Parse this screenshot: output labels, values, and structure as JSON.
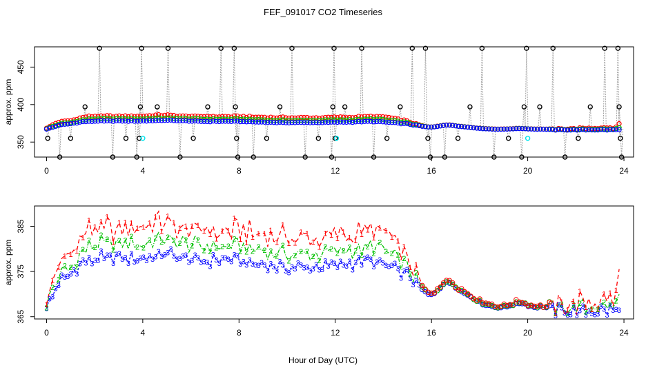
{
  "title": "FEF_091017  CO2 Timeseries",
  "colors": {
    "s1": "#ff0000",
    "s2": "#00c000",
    "s3": "#0000ff",
    "raw": "#000000",
    "flag": "#00e5ee",
    "line": "#a0a0a0"
  },
  "chart_data": [
    {
      "type": "scatter",
      "title": "FEF_091017  CO2 Timeseries",
      "xlabel": "",
      "ylabel": "approx. ppm",
      "xlim": [
        -0.5,
        24.4
      ],
      "ylim": [
        330,
        477
      ],
      "xticks": [
        0,
        4,
        8,
        12,
        16,
        20,
        24
      ],
      "yticks": [
        350,
        400,
        450
      ],
      "raw_spikes": [
        {
          "x": 0.05,
          "y": 355
        },
        {
          "x": 0.55,
          "y": 330
        },
        {
          "x": 1.0,
          "y": 355
        },
        {
          "x": 1.6,
          "y": 397
        },
        {
          "x": 2.2,
          "y": 475
        },
        {
          "x": 2.75,
          "y": 330
        },
        {
          "x": 3.3,
          "y": 355
        },
        {
          "x": 3.75,
          "y": 330
        },
        {
          "x": 3.85,
          "y": 355
        },
        {
          "x": 3.9,
          "y": 397
        },
        {
          "x": 3.95,
          "y": 475
        },
        {
          "x": 4.6,
          "y": 397
        },
        {
          "x": 5.05,
          "y": 475
        },
        {
          "x": 5.55,
          "y": 330
        },
        {
          "x": 6.1,
          "y": 355
        },
        {
          "x": 6.7,
          "y": 397
        },
        {
          "x": 7.25,
          "y": 475
        },
        {
          "x": 7.8,
          "y": 475
        },
        {
          "x": 7.85,
          "y": 397
        },
        {
          "x": 7.9,
          "y": 355
        },
        {
          "x": 7.95,
          "y": 330
        },
        {
          "x": 8.6,
          "y": 330
        },
        {
          "x": 9.15,
          "y": 355
        },
        {
          "x": 9.7,
          "y": 397
        },
        {
          "x": 10.2,
          "y": 475
        },
        {
          "x": 10.75,
          "y": 330
        },
        {
          "x": 11.3,
          "y": 355
        },
        {
          "x": 11.85,
          "y": 330
        },
        {
          "x": 11.9,
          "y": 397
        },
        {
          "x": 11.95,
          "y": 475
        },
        {
          "x": 12.0,
          "y": 355
        },
        {
          "x": 12.4,
          "y": 397
        },
        {
          "x": 13.1,
          "y": 475
        },
        {
          "x": 13.6,
          "y": 330
        },
        {
          "x": 14.15,
          "y": 355
        },
        {
          "x": 14.7,
          "y": 397
        },
        {
          "x": 15.2,
          "y": 475
        },
        {
          "x": 15.75,
          "y": 475
        },
        {
          "x": 15.85,
          "y": 355
        },
        {
          "x": 15.95,
          "y": 330
        },
        {
          "x": 16.55,
          "y": 330
        },
        {
          "x": 17.1,
          "y": 355
        },
        {
          "x": 17.6,
          "y": 397
        },
        {
          "x": 18.1,
          "y": 475
        },
        {
          "x": 18.6,
          "y": 330
        },
        {
          "x": 19.2,
          "y": 355
        },
        {
          "x": 19.75,
          "y": 330
        },
        {
          "x": 19.85,
          "y": 397
        },
        {
          "x": 19.95,
          "y": 475
        },
        {
          "x": 20.5,
          "y": 397
        },
        {
          "x": 21.05,
          "y": 475
        },
        {
          "x": 21.55,
          "y": 330
        },
        {
          "x": 22.1,
          "y": 355
        },
        {
          "x": 22.6,
          "y": 397
        },
        {
          "x": 23.2,
          "y": 475
        },
        {
          "x": 23.75,
          "y": 475
        },
        {
          "x": 23.8,
          "y": 397
        },
        {
          "x": 23.85,
          "y": 355
        },
        {
          "x": 23.9,
          "y": 330
        }
      ],
      "flagged_points": [
        {
          "x": 4.0,
          "y": 355
        },
        {
          "x": 12.05,
          "y": 355
        },
        {
          "x": 20.0,
          "y": 355
        }
      ]
    },
    {
      "type": "line",
      "title": "",
      "xlabel": "Hour of Day (UTC)",
      "ylabel": "approx. ppm",
      "xlim": [
        -0.5,
        24.4
      ],
      "ylim": [
        364.5,
        389.5
      ],
      "xticks": [
        0,
        4,
        8,
        12,
        16,
        20,
        24
      ],
      "yticks": [
        365,
        375,
        385
      ],
      "series_labels": [
        "1",
        "2",
        "3"
      ],
      "anchors_hour": [
        0.0,
        0.15,
        0.3,
        0.45,
        0.55,
        0.7,
        0.85,
        1.0,
        1.2,
        1.5,
        1.8,
        2.1,
        2.5,
        3.0,
        3.5,
        4.0,
        4.5,
        5.0,
        5.5,
        6.0,
        6.5,
        7.0,
        7.5,
        8.0,
        8.5,
        9.0,
        9.5,
        10.0,
        10.5,
        11.0,
        11.5,
        12.0,
        12.5,
        13.0,
        13.5,
        14.0,
        14.5,
        15.0,
        15.3,
        15.6,
        15.9,
        16.1,
        16.3,
        16.5,
        16.7,
        16.9,
        17.1,
        17.4,
        17.7,
        18.0,
        18.3,
        18.6,
        19.0,
        19.4,
        19.7,
        19.95,
        20.3,
        20.7,
        21.0,
        21.5,
        22.0,
        22.5,
        23.0,
        23.3,
        23.5,
        23.65,
        23.8
      ],
      "series": [
        {
          "name": "1",
          "values": [
            369.0,
            371.0,
            374.0,
            376.0,
            377.0,
            378.0,
            378.0,
            378.5,
            380.0,
            383.0,
            384.0,
            384.5,
            384.5,
            384.5,
            384.5,
            384.5,
            385.5,
            386.0,
            385.0,
            384.5,
            384.0,
            384.0,
            384.0,
            384.0,
            383.5,
            383.0,
            382.5,
            382.5,
            382.5,
            382.5,
            382.5,
            383.0,
            383.0,
            383.5,
            384.0,
            383.5,
            381.0,
            378.0,
            374.0,
            372.0,
            370.0,
            370.5,
            371.5,
            372.5,
            373.0,
            372.5,
            371.5,
            370.5,
            369.5,
            368.5,
            368.0,
            367.5,
            367.5,
            368.0,
            368.5,
            368.0,
            367.5,
            367.5,
            367.0,
            367.5,
            368.0,
            368.5,
            368.5,
            369.0,
            368.0,
            369.0,
            374.0
          ]
        },
        {
          "name": "2",
          "values": [
            368.0,
            369.5,
            371.5,
            373.0,
            374.0,
            375.0,
            375.5,
            376.0,
            377.5,
            379.5,
            380.5,
            381.0,
            381.0,
            381.0,
            381.0,
            381.0,
            381.5,
            382.0,
            381.5,
            381.0,
            380.5,
            380.5,
            380.5,
            380.5,
            380.0,
            379.5,
            379.0,
            379.0,
            379.0,
            379.0,
            379.0,
            379.5,
            379.5,
            380.0,
            380.5,
            380.0,
            378.0,
            376.0,
            373.0,
            371.5,
            370.0,
            370.3,
            371.3,
            372.3,
            372.8,
            372.3,
            371.3,
            370.3,
            369.3,
            368.3,
            367.8,
            367.3,
            367.3,
            367.8,
            368.3,
            367.8,
            367.3,
            367.3,
            366.6,
            366.8,
            367.0,
            367.0,
            367.2,
            367.4,
            367.2,
            367.5,
            369.0
          ]
        },
        {
          "name": "3",
          "values": [
            367.5,
            368.5,
            370.0,
            371.5,
            372.5,
            373.5,
            374.0,
            374.5,
            375.5,
            377.0,
            377.5,
            378.0,
            378.0,
            378.0,
            378.0,
            378.0,
            378.5,
            379.0,
            378.5,
            378.0,
            377.5,
            377.5,
            377.5,
            377.5,
            377.0,
            376.5,
            376.0,
            376.0,
            376.0,
            376.0,
            376.0,
            376.5,
            376.5,
            377.0,
            377.5,
            377.0,
            375.5,
            374.0,
            372.5,
            371.0,
            369.8,
            370.1,
            371.1,
            372.1,
            372.6,
            372.1,
            371.1,
            370.1,
            369.1,
            368.1,
            367.6,
            367.1,
            367.1,
            367.6,
            368.1,
            367.6,
            367.1,
            367.1,
            366.2,
            366.2,
            366.3,
            366.3,
            366.3,
            366.3,
            366.3,
            366.3,
            366.5
          ]
        }
      ]
    }
  ]
}
